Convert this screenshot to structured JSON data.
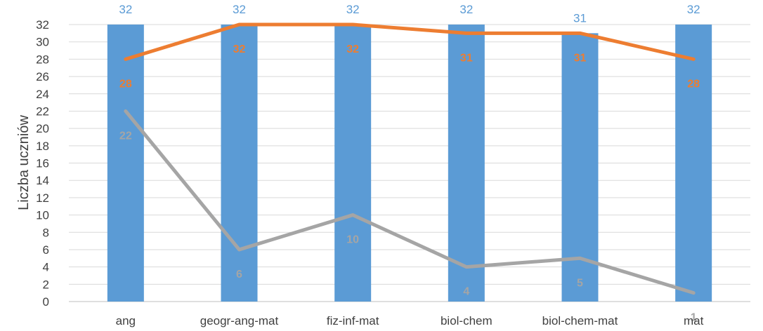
{
  "chart_data": {
    "type": "bar",
    "categories": [
      "ang",
      "geogr-ang-mat",
      "fiz-inf-mat",
      "biol-chem",
      "biol-chem-mat",
      "mat"
    ],
    "ylabel": "Liczba uczniów",
    "xlabel": "",
    "ylim": [
      0,
      32
    ],
    "yticks": [
      0,
      2,
      4,
      6,
      8,
      10,
      12,
      14,
      16,
      18,
      20,
      22,
      24,
      26,
      28,
      30,
      32
    ],
    "grid": true,
    "legend": "none",
    "series": [
      {
        "type": "bar",
        "color": "#5B9BD5",
        "values": [
          32,
          32,
          32,
          32,
          31,
          32
        ],
        "labels_color": "#5B9BD5"
      },
      {
        "type": "line",
        "color": "#ED7D31",
        "values": [
          28,
          32,
          32,
          31,
          31,
          28
        ],
        "labels_color": "#ED7D31"
      },
      {
        "type": "line",
        "color": "#A5A5A5",
        "values": [
          22,
          6,
          10,
          4,
          5,
          1
        ],
        "labels_color": "#A5A5A5"
      }
    ]
  }
}
